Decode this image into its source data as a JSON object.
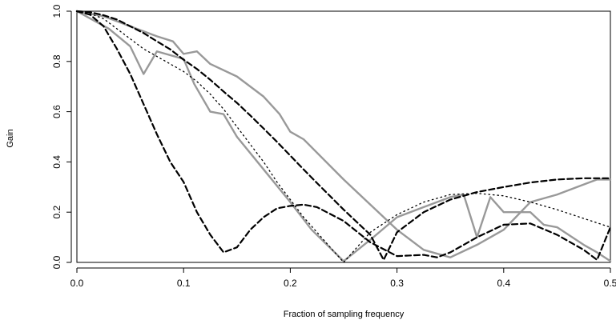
{
  "chart_data": {
    "type": "line",
    "title": "",
    "xlabel": "Fraction of sampling frequency",
    "ylabel": "Gain",
    "xlim": [
      0,
      0.5
    ],
    "ylim": [
      0,
      1.0
    ],
    "xticks": [
      0.0,
      0.1,
      0.2,
      0.3,
      0.4,
      0.5
    ],
    "yticks": [
      0.0,
      0.2,
      0.4,
      0.6,
      0.8,
      1.0
    ],
    "xtick_labels": [
      "0.0",
      "0.1",
      "0.2",
      "0.3",
      "0.4",
      "0.5"
    ],
    "ytick_labels": [
      "0.0",
      "0.2",
      "0.4",
      "0.6",
      "0.8",
      "1.0"
    ],
    "grid": false,
    "legend": "none",
    "series": [
      {
        "style": "gray-solid",
        "color": "#999999",
        "x": [
          0,
          0.03,
          0.05,
          0.0625,
          0.075,
          0.1,
          0.11,
          0.125,
          0.1375,
          0.15,
          0.175,
          0.2,
          0.22,
          0.25,
          0.275,
          0.3,
          0.325,
          0.35,
          0.3625,
          0.375,
          0.3875,
          0.4,
          0.4125,
          0.425,
          0.4375,
          0.45,
          0.475,
          0.4875,
          0.5
        ],
        "y": [
          1.0,
          0.93,
          0.86,
          0.75,
          0.84,
          0.81,
          0.71,
          0.6,
          0.59,
          0.5,
          0.37,
          0.24,
          0.13,
          0.005,
          0.09,
          0.18,
          0.22,
          0.26,
          0.27,
          0.1,
          0.26,
          0.2,
          0.2,
          0.2,
          0.15,
          0.14,
          0.07,
          0.04,
          0.005
        ]
      },
      {
        "style": "gray-solid",
        "color": "#999999",
        "x": [
          0,
          0.025,
          0.05,
          0.075,
          0.09,
          0.1,
          0.1125,
          0.125,
          0.15,
          0.175,
          0.19,
          0.2,
          0.2125,
          0.25,
          0.275,
          0.3,
          0.325,
          0.35,
          0.375,
          0.4,
          0.425,
          0.45,
          0.475,
          0.4875,
          0.5
        ],
        "y": [
          1.0,
          0.98,
          0.94,
          0.9,
          0.88,
          0.83,
          0.84,
          0.79,
          0.74,
          0.66,
          0.59,
          0.52,
          0.49,
          0.33,
          0.23,
          0.13,
          0.05,
          0.02,
          0.07,
          0.13,
          0.24,
          0.27,
          0.31,
          0.33,
          0.33
        ]
      },
      {
        "style": "dotted",
        "color": "#000000",
        "x": [
          0,
          0.0125,
          0.025,
          0.0375,
          0.05,
          0.0625,
          0.075,
          0.0875,
          0.1,
          0.1125,
          0.125,
          0.1375,
          0.15,
          0.1625,
          0.175,
          0.1875,
          0.2,
          0.2125,
          0.225,
          0.25,
          0.275,
          0.3,
          0.325,
          0.35,
          0.375,
          0.4,
          0.425,
          0.45,
          0.475,
          0.5
        ],
        "y": [
          1.0,
          0.99,
          0.97,
          0.93,
          0.89,
          0.85,
          0.82,
          0.79,
          0.76,
          0.72,
          0.67,
          0.61,
          0.54,
          0.47,
          0.4,
          0.32,
          0.25,
          0.18,
          0.12,
          0.0,
          0.12,
          0.19,
          0.24,
          0.27,
          0.275,
          0.265,
          0.24,
          0.21,
          0.175,
          0.14
        ]
      },
      {
        "style": "dashed",
        "color": "#000000",
        "x": [
          0,
          0.0125,
          0.025,
          0.0375,
          0.05,
          0.0625,
          0.075,
          0.0875,
          0.1,
          0.1125,
          0.125,
          0.1375,
          0.15,
          0.1625,
          0.175,
          0.1875,
          0.2,
          0.2125,
          0.225,
          0.25,
          0.275,
          0.2875,
          0.3,
          0.325,
          0.35,
          0.375,
          0.4,
          0.425,
          0.45,
          0.475,
          0.5
        ],
        "y": [
          1.0,
          0.996,
          0.984,
          0.967,
          0.94,
          0.913,
          0.88,
          0.848,
          0.807,
          0.77,
          0.727,
          0.68,
          0.635,
          0.585,
          0.533,
          0.48,
          0.425,
          0.37,
          0.316,
          0.21,
          0.11,
          0.01,
          0.12,
          0.2,
          0.25,
          0.28,
          0.3,
          0.318,
          0.33,
          0.335,
          0.335
        ]
      },
      {
        "style": "dashed",
        "color": "#000000",
        "x": [
          0,
          0.0125,
          0.025,
          0.0375,
          0.05,
          0.0625,
          0.075,
          0.0875,
          0.1,
          0.1125,
          0.125,
          0.1375,
          0.15,
          0.1625,
          0.175,
          0.1875,
          0.2,
          0.2125,
          0.225,
          0.25,
          0.275,
          0.3,
          0.325,
          0.3375,
          0.35,
          0.375,
          0.4,
          0.425,
          0.45,
          0.475,
          0.4875,
          0.5
        ],
        "y": [
          1.0,
          0.986,
          0.94,
          0.85,
          0.75,
          0.63,
          0.51,
          0.4,
          0.32,
          0.2,
          0.11,
          0.04,
          0.06,
          0.13,
          0.18,
          0.215,
          0.225,
          0.23,
          0.22,
          0.165,
          0.08,
          0.025,
          0.03,
          0.02,
          0.04,
          0.1,
          0.15,
          0.155,
          0.11,
          0.05,
          0.01,
          0.14
        ]
      }
    ]
  }
}
